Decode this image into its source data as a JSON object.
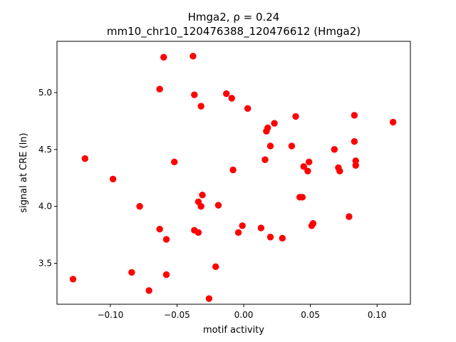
{
  "chart_data": {
    "type": "scatter",
    "title_line1": "Hmga2, ρ = 0.24",
    "title_line2": "mm10_chr10_120476388_120476612 (Hmga2)",
    "xlabel": "motif activity",
    "ylabel": "signal at CRE (ln)",
    "xlim": [
      -0.14,
      0.125
    ],
    "ylim": [
      3.14,
      5.45
    ],
    "xticks": [
      {
        "value": -0.1,
        "label": "−0.10"
      },
      {
        "value": -0.05,
        "label": "−0.05"
      },
      {
        "value": 0.0,
        "label": "0.00"
      },
      {
        "value": 0.05,
        "label": "0.05"
      },
      {
        "value": 0.1,
        "label": "0.10"
      }
    ],
    "yticks": [
      {
        "value": 3.5,
        "label": "3.5"
      },
      {
        "value": 4.0,
        "label": "4.0"
      },
      {
        "value": 4.5,
        "label": "4.5"
      },
      {
        "value": 5.0,
        "label": "5.0"
      }
    ],
    "grid": false,
    "marker_color": "#ff0000",
    "points": [
      {
        "x": -0.128,
        "y": 3.36
      },
      {
        "x": -0.119,
        "y": 4.42
      },
      {
        "x": -0.098,
        "y": 4.24
      },
      {
        "x": -0.084,
        "y": 3.42
      },
      {
        "x": -0.078,
        "y": 4.0
      },
      {
        "x": -0.071,
        "y": 3.26
      },
      {
        "x": -0.063,
        "y": 5.03
      },
      {
        "x": -0.063,
        "y": 3.8
      },
      {
        "x": -0.06,
        "y": 5.31
      },
      {
        "x": -0.058,
        "y": 3.71
      },
      {
        "x": -0.058,
        "y": 3.4
      },
      {
        "x": -0.052,
        "y": 4.39
      },
      {
        "x": -0.038,
        "y": 5.32
      },
      {
        "x": -0.037,
        "y": 4.98
      },
      {
        "x": -0.037,
        "y": 3.79
      },
      {
        "x": -0.034,
        "y": 4.04
      },
      {
        "x": -0.034,
        "y": 3.77
      },
      {
        "x": -0.032,
        "y": 4.88
      },
      {
        "x": -0.032,
        "y": 4.0
      },
      {
        "x": -0.031,
        "y": 4.1
      },
      {
        "x": -0.026,
        "y": 3.19
      },
      {
        "x": -0.021,
        "y": 3.47
      },
      {
        "x": -0.019,
        "y": 4.01
      },
      {
        "x": -0.013,
        "y": 4.99
      },
      {
        "x": -0.009,
        "y": 4.95
      },
      {
        "x": -0.008,
        "y": 4.32
      },
      {
        "x": -0.004,
        "y": 3.77
      },
      {
        "x": -0.001,
        "y": 3.83
      },
      {
        "x": 0.003,
        "y": 4.86
      },
      {
        "x": 0.013,
        "y": 3.81
      },
      {
        "x": 0.016,
        "y": 4.41
      },
      {
        "x": 0.017,
        "y": 4.66
      },
      {
        "x": 0.018,
        "y": 4.69
      },
      {
        "x": 0.02,
        "y": 4.53
      },
      {
        "x": 0.02,
        "y": 3.73
      },
      {
        "x": 0.023,
        "y": 4.73
      },
      {
        "x": 0.029,
        "y": 3.72
      },
      {
        "x": 0.036,
        "y": 4.53
      },
      {
        "x": 0.039,
        "y": 4.79
      },
      {
        "x": 0.042,
        "y": 4.08
      },
      {
        "x": 0.044,
        "y": 4.08
      },
      {
        "x": 0.045,
        "y": 4.35
      },
      {
        "x": 0.048,
        "y": 4.31
      },
      {
        "x": 0.049,
        "y": 4.39
      },
      {
        "x": 0.051,
        "y": 3.83
      },
      {
        "x": 0.052,
        "y": 3.85
      },
      {
        "x": 0.068,
        "y": 4.5
      },
      {
        "x": 0.071,
        "y": 4.34
      },
      {
        "x": 0.072,
        "y": 4.31
      },
      {
        "x": 0.079,
        "y": 3.91
      },
      {
        "x": 0.083,
        "y": 4.8
      },
      {
        "x": 0.083,
        "y": 4.57
      },
      {
        "x": 0.084,
        "y": 4.4
      },
      {
        "x": 0.084,
        "y": 4.36
      },
      {
        "x": 0.112,
        "y": 4.74
      }
    ]
  }
}
